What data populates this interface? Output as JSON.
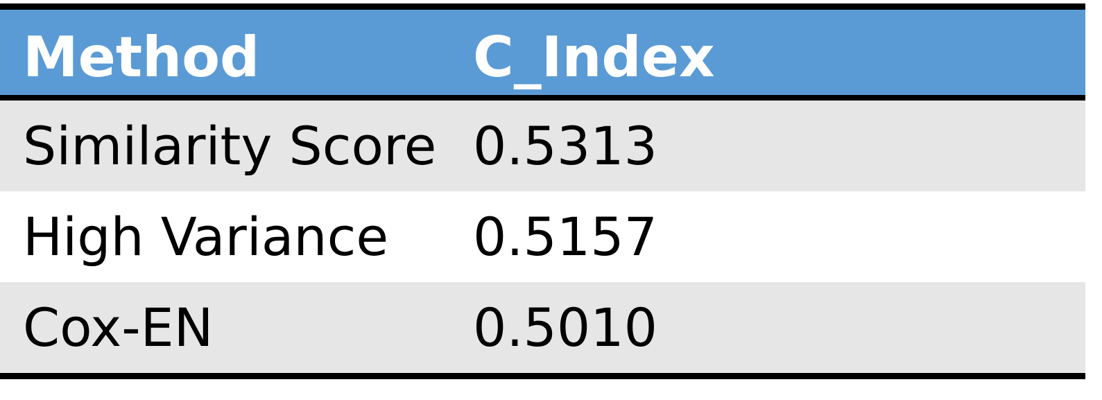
{
  "table": {
    "headers": [
      "Method",
      "C_Index"
    ],
    "rows": [
      {
        "method": "Similarity Score",
        "c_index": "0.5313"
      },
      {
        "method": "High Variance",
        "c_index": "0.5157"
      },
      {
        "method": "Cox-EN",
        "c_index": "0.5010"
      }
    ]
  },
  "colors": {
    "header_background": "#5b9bd5",
    "header_text": "#ffffff",
    "band_background": "#e7e6e6",
    "rule": "#000000"
  }
}
